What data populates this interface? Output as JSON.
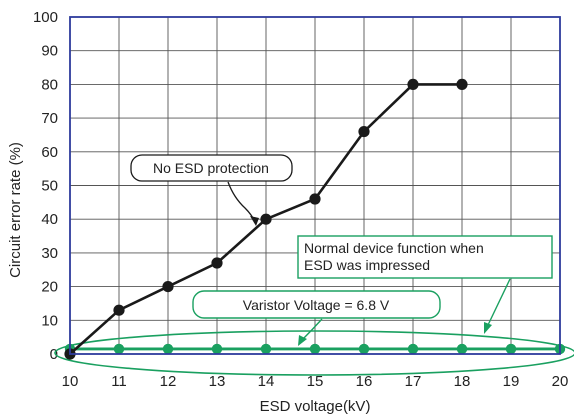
{
  "chart_data": {
    "type": "line",
    "xlabel": "ESD voltage(kV)",
    "ylabel": "Circuit error rate (%)",
    "xlim": [
      10,
      20
    ],
    "ylim": [
      0,
      100
    ],
    "x_ticks": [
      "10",
      "11",
      "12",
      "13",
      "14",
      "15",
      "16",
      "17",
      "18",
      "19",
      "20"
    ],
    "y_ticks": [
      "0",
      "10",
      "20",
      "30",
      "40",
      "50",
      "60",
      "70",
      "80",
      "90",
      "100"
    ],
    "grid": true,
    "series": [
      {
        "name": "No ESD protection",
        "color": "#1a1a1a",
        "points": [
          [
            10,
            0
          ],
          [
            11,
            13
          ],
          [
            12,
            20
          ],
          [
            13,
            27
          ],
          [
            14,
            40
          ],
          [
            15,
            46
          ],
          [
            16,
            66
          ],
          [
            17,
            80
          ],
          [
            18,
            80
          ]
        ]
      },
      {
        "name": "Varistor Voltage = 6.8 V",
        "color": "#1aa060",
        "points": [
          [
            10,
            1.5
          ],
          [
            11,
            1.5
          ],
          [
            12,
            1.5
          ],
          [
            13,
            1.5
          ],
          [
            14,
            1.5
          ],
          [
            15,
            1.5
          ],
          [
            16,
            1.5
          ],
          [
            17,
            1.5
          ],
          [
            18,
            1.5
          ],
          [
            19,
            1.5
          ],
          [
            20,
            1.5
          ]
        ]
      }
    ],
    "annotations": {
      "no_esd": "No ESD protection",
      "varistor": "Varistor Voltage = 6.8 V",
      "normal_line1": "Normal device function when",
      "normal_line2": "ESD was impressed"
    },
    "colors": {
      "frame": "#2e3b9c",
      "grid": "#555555",
      "series_black": "#1a1a1a",
      "series_green": "#1aa060"
    }
  }
}
